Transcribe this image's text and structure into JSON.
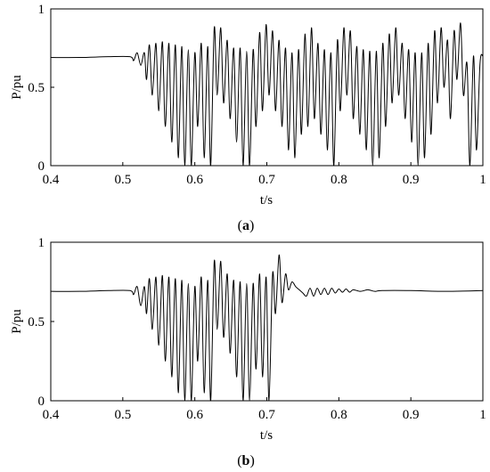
{
  "chart_data": [
    {
      "type": "line",
      "panel_label": {
        "open": "(",
        "letter": "a",
        "close": ")"
      },
      "xlabel": "t/s",
      "ylabel": "P/pu",
      "xlim": [
        0.4,
        1.0
      ],
      "ylim": [
        0,
        1
      ],
      "xticks": [
        "0.4",
        "0.5",
        "0.6",
        "0.7",
        "0.8",
        "0.9",
        "1"
      ],
      "yticks": [
        "0",
        "0.5",
        "1"
      ],
      "grid": false,
      "series": [
        {
          "x": [
            0.4,
            0.44,
            0.48,
            0.51,
            0.515,
            0.52,
            0.525,
            0.53,
            0.533,
            0.537,
            0.541,
            0.546,
            0.55,
            0.555,
            0.559,
            0.564,
            0.568,
            0.573,
            0.577,
            0.582,
            0.586,
            0.591,
            0.595,
            0.6,
            0.604,
            0.609,
            0.613,
            0.618,
            0.622,
            0.627,
            0.631,
            0.636,
            0.64,
            0.645,
            0.649,
            0.654,
            0.658,
            0.663,
            0.667,
            0.672,
            0.676,
            0.681,
            0.685,
            0.69,
            0.694,
            0.699,
            0.703,
            0.708,
            0.712,
            0.717,
            0.721,
            0.726,
            0.73,
            0.735,
            0.739,
            0.744,
            0.748,
            0.753,
            0.757,
            0.762,
            0.766,
            0.771,
            0.775,
            0.78,
            0.784,
            0.789,
            0.793,
            0.798,
            0.802,
            0.807,
            0.811,
            0.816,
            0.82,
            0.825,
            0.829,
            0.834,
            0.838,
            0.843,
            0.847,
            0.852,
            0.856,
            0.861,
            0.865,
            0.87,
            0.874,
            0.879,
            0.883,
            0.888,
            0.892,
            0.897,
            0.901,
            0.906,
            0.91,
            0.915,
            0.919,
            0.924,
            0.928,
            0.933,
            0.937,
            0.942,
            0.946,
            0.951,
            0.955,
            0.96,
            0.964,
            0.969,
            0.973,
            0.978,
            0.982,
            0.987,
            0.991,
            0.996,
            1.0
          ],
          "y": [
            0.69,
            0.69,
            0.695,
            0.695,
            0.67,
            0.72,
            0.64,
            0.72,
            0.55,
            0.77,
            0.45,
            0.78,
            0.35,
            0.79,
            0.25,
            0.78,
            0.15,
            0.77,
            0.05,
            0.76,
            0.0,
            0.74,
            0.0,
            0.72,
            0.25,
            0.78,
            0.05,
            0.76,
            0.0,
            0.88,
            0.45,
            0.88,
            0.4,
            0.8,
            0.3,
            0.75,
            0.15,
            0.75,
            0.0,
            0.73,
            0.0,
            0.74,
            0.25,
            0.85,
            0.35,
            0.9,
            0.45,
            0.86,
            0.35,
            0.8,
            0.25,
            0.75,
            0.1,
            0.72,
            0.05,
            0.74,
            0.2,
            0.84,
            0.25,
            0.88,
            0.3,
            0.78,
            0.2,
            0.74,
            0.1,
            0.72,
            0.0,
            0.8,
            0.35,
            0.88,
            0.45,
            0.86,
            0.3,
            0.76,
            0.2,
            0.74,
            0.1,
            0.73,
            0.0,
            0.73,
            0.05,
            0.78,
            0.25,
            0.84,
            0.4,
            0.88,
            0.45,
            0.78,
            0.3,
            0.74,
            0.15,
            0.72,
            0.0,
            0.72,
            0.05,
            0.78,
            0.2,
            0.86,
            0.4,
            0.88,
            0.5,
            0.8,
            0.3,
            0.86,
            0.55,
            0.91,
            0.45,
            0.65,
            0.0,
            0.7,
            0.1,
            0.65,
            0.7
          ]
        }
      ]
    },
    {
      "type": "line",
      "panel_label": {
        "open": "(",
        "letter": "b",
        "close": ")"
      },
      "xlabel": "t/s",
      "ylabel": "P/pu",
      "xlim": [
        0.4,
        1.0
      ],
      "ylim": [
        0,
        1
      ],
      "xticks": [
        "0.4",
        "0.5",
        "0.6",
        "0.7",
        "0.8",
        "0.9",
        "1"
      ],
      "yticks": [
        "0",
        "0.5",
        "1"
      ],
      "grid": false,
      "series": [
        {
          "x": [
            0.4,
            0.44,
            0.48,
            0.51,
            0.515,
            0.52,
            0.525,
            0.53,
            0.533,
            0.537,
            0.541,
            0.546,
            0.55,
            0.555,
            0.559,
            0.564,
            0.568,
            0.573,
            0.577,
            0.582,
            0.586,
            0.591,
            0.595,
            0.6,
            0.604,
            0.609,
            0.613,
            0.618,
            0.622,
            0.627,
            0.631,
            0.636,
            0.64,
            0.645,
            0.649,
            0.654,
            0.658,
            0.663,
            0.667,
            0.672,
            0.676,
            0.681,
            0.685,
            0.69,
            0.694,
            0.699,
            0.703,
            0.708,
            0.712,
            0.717,
            0.721,
            0.726,
            0.73,
            0.735,
            0.74,
            0.745,
            0.75,
            0.755,
            0.76,
            0.765,
            0.77,
            0.775,
            0.78,
            0.785,
            0.79,
            0.795,
            0.8,
            0.805,
            0.81,
            0.815,
            0.82,
            0.83,
            0.84,
            0.85,
            0.86,
            0.9,
            0.95,
            1.0
          ],
          "y": [
            0.69,
            0.69,
            0.695,
            0.695,
            0.67,
            0.72,
            0.6,
            0.72,
            0.55,
            0.77,
            0.45,
            0.78,
            0.35,
            0.79,
            0.25,
            0.78,
            0.15,
            0.77,
            0.05,
            0.76,
            0.0,
            0.74,
            0.0,
            0.72,
            0.25,
            0.78,
            0.05,
            0.76,
            0.0,
            0.88,
            0.45,
            0.88,
            0.4,
            0.8,
            0.3,
            0.76,
            0.15,
            0.75,
            0.0,
            0.74,
            0.0,
            0.74,
            0.2,
            0.8,
            0.15,
            0.78,
            0.0,
            0.8,
            0.55,
            0.92,
            0.62,
            0.8,
            0.7,
            0.75,
            0.72,
            0.7,
            0.68,
            0.66,
            0.71,
            0.66,
            0.71,
            0.67,
            0.71,
            0.67,
            0.71,
            0.68,
            0.705,
            0.685,
            0.705,
            0.685,
            0.7,
            0.69,
            0.7,
            0.69,
            0.695,
            0.695,
            0.69,
            0.695
          ]
        }
      ]
    }
  ]
}
